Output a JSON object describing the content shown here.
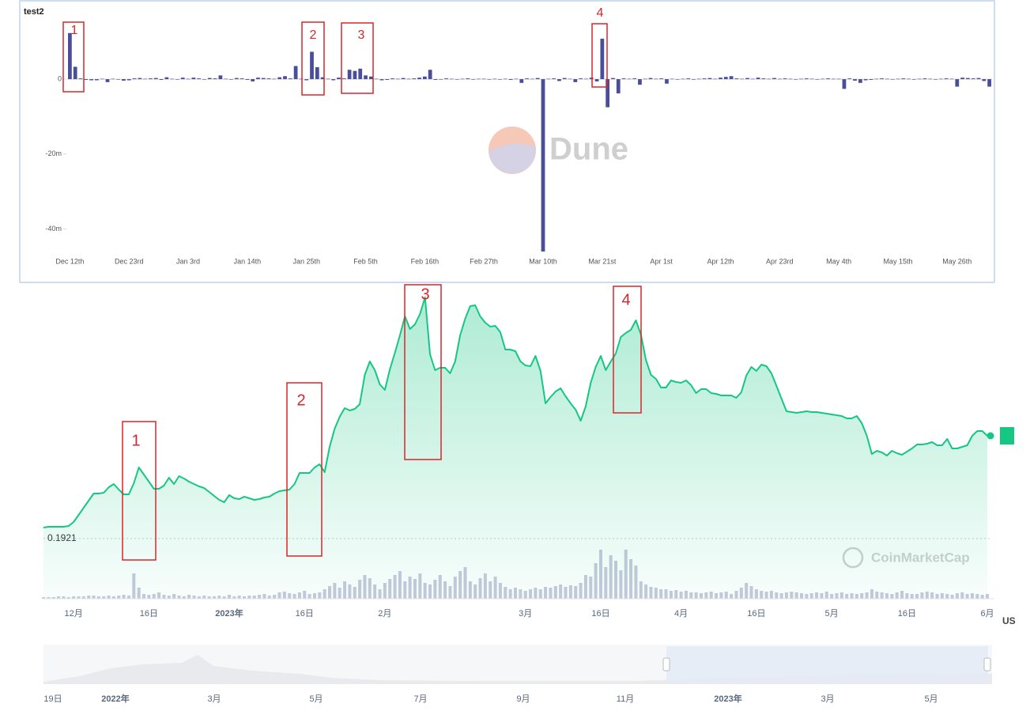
{
  "chart_data": [
    {
      "type": "bar",
      "title": "test2",
      "color": "#4a4e99",
      "watermark": "Dune",
      "ylim": [
        -46,
        15
      ],
      "yticks": [
        0,
        {
          "value": -20,
          "label": "-20m"
        },
        {
          "value": -40,
          "label": "-40m"
        }
      ],
      "annotations": [
        "1",
        "2",
        "3",
        "4"
      ],
      "categories": [
        "Dec 12th",
        null,
        null,
        null,
        null,
        null,
        null,
        null,
        null,
        null,
        null,
        "Dec 23rd",
        null,
        null,
        null,
        null,
        null,
        null,
        null,
        null,
        null,
        null,
        "Jan 3rd",
        null,
        null,
        null,
        null,
        null,
        null,
        null,
        null,
        null,
        null,
        "Jan 14th",
        null,
        null,
        null,
        null,
        null,
        null,
        null,
        null,
        null,
        null,
        "Jan 25th",
        null,
        null,
        null,
        null,
        null,
        null,
        null,
        null,
        null,
        null,
        "Feb 5th",
        null,
        null,
        null,
        null,
        null,
        null,
        null,
        null,
        null,
        null,
        "Feb 16th",
        null,
        null,
        null,
        null,
        null,
        null,
        null,
        null,
        null,
        null,
        "Feb 27th",
        null,
        null,
        null,
        null,
        null,
        null,
        null,
        null,
        null,
        null,
        "Mar 10th",
        null,
        null,
        null,
        null,
        null,
        null,
        null,
        null,
        null,
        null,
        "Mar 21st",
        null,
        null,
        null,
        null,
        null,
        null,
        null,
        null,
        null,
        null,
        "Apr 1st",
        null,
        null,
        null,
        null,
        null,
        null,
        null,
        null,
        null,
        null,
        "Apr 12th",
        null,
        null,
        null,
        null,
        null,
        null,
        null,
        null,
        null,
        null,
        "Apr 23rd",
        null,
        null,
        null,
        null,
        null,
        null,
        null,
        null,
        null,
        null,
        "May 4th",
        null,
        null,
        null,
        null,
        null,
        null,
        null,
        null,
        null,
        null,
        "May 15th",
        null,
        null,
        null,
        null,
        null,
        null,
        null,
        null,
        null,
        null,
        "May 26th",
        null,
        null,
        null,
        null,
        null,
        null
      ],
      "values": [
        12.3,
        3.3,
        0.2,
        -0.2,
        -0.3,
        -0.3,
        0.1,
        -0.8,
        0.1,
        0,
        -0.4,
        -0.3,
        0.2,
        0.3,
        0.1,
        0.2,
        0.3,
        -0.2,
        0.5,
        0.1,
        0,
        0.4,
        0.1,
        0.4,
        0.2,
        -0.1,
        0.3,
        0.2,
        1.0,
        0.1,
        0,
        0.3,
        0.2,
        -0.2,
        -0.6,
        0.4,
        0.3,
        0.2,
        0.1,
        0.5,
        0.8,
        0.2,
        3.5,
        0.1,
        -0.3,
        7.3,
        3.2,
        0.5,
        0.1,
        -0.3,
        0.4,
        0.2,
        2.5,
        2.2,
        2.8,
        1.0,
        0.7,
        0.1,
        -0.3,
        -0.2,
        0.2,
        0.1,
        0.3,
        0.1,
        0.2,
        0.4,
        0.7,
        2.5,
        -0.2,
        -0.1,
        0.2,
        0.1,
        -0.1,
        0.1,
        0.2,
        0,
        0.1,
        0.1,
        -0.1,
        0.1,
        0,
        0.1,
        -0.2,
        0.1,
        -1.0,
        0.2,
        0.1,
        0.3,
        -46,
        0.1,
        0.2,
        -0.5,
        0.3,
        0.1,
        -0.8,
        0.2,
        0.1,
        0.4,
        -0.6,
        10.8,
        -7.5,
        0.3,
        -3.8,
        0.2,
        0.1,
        0.2,
        -1.5,
        0.1,
        0.3,
        0.1,
        0.2,
        -1.2,
        0.1,
        0,
        0.1,
        0.2,
        -0.1,
        0.1,
        0.2,
        0.3,
        0.1,
        0.4,
        0.6,
        0.8,
        0.2,
        0.1,
        0.3,
        0.1,
        0.4,
        0.2,
        0.1,
        0.3,
        0.1,
        0.2,
        0.1,
        0,
        0.1,
        0.2,
        0.1,
        0,
        0.1,
        0.2,
        0.1,
        0.1,
        -2.6,
        0.2,
        -0.4,
        -1.0,
        -0.3,
        -0.2,
        0.1,
        0.2,
        0.1,
        0,
        0.1,
        0.2,
        0.1,
        0,
        0.1,
        0.2,
        0.1,
        0,
        0.1,
        0.2,
        0.1,
        -2.0,
        0.4,
        0.3,
        0.2,
        0.3,
        -0.5,
        -2.0
      ]
    },
    {
      "type": "line",
      "watermark": "CoinMarketCap",
      "unit_label": "US",
      "ylim": [
        0.113,
        0.513
      ],
      "min_price": 0.1921,
      "annotations": [
        "1",
        "2",
        "3",
        "4"
      ],
      "categories": [
        null,
        null,
        null,
        null,
        null,
        null,
        "12月",
        null,
        null,
        null,
        null,
        null,
        null,
        null,
        null,
        null,
        null,
        null,
        null,
        null,
        null,
        "16日",
        null,
        null,
        null,
        null,
        null,
        null,
        null,
        null,
        null,
        null,
        null,
        null,
        null,
        null,
        null,
        "2023年",
        null,
        null,
        null,
        null,
        null,
        null,
        null,
        null,
        null,
        null,
        null,
        null,
        null,
        null,
        "16日",
        null,
        null,
        null,
        null,
        null,
        null,
        null,
        null,
        null,
        null,
        null,
        null,
        null,
        null,
        null,
        "2月",
        null,
        null,
        null,
        null,
        null,
        null,
        null,
        null,
        null,
        null,
        null,
        null,
        null,
        null,
        null,
        null,
        null,
        null,
        null,
        null,
        null,
        null,
        null,
        null,
        null,
        null,
        null,
        "3月",
        null,
        null,
        null,
        null,
        null,
        null,
        null,
        null,
        null,
        null,
        null,
        null,
        null,
        null,
        "16日",
        null,
        null,
        null,
        null,
        null,
        null,
        null,
        null,
        null,
        null,
        null,
        null,
        null,
        null,
        null,
        "4月",
        null,
        null,
        null,
        null,
        null,
        null,
        null,
        null,
        null,
        null,
        null,
        null,
        null,
        null,
        "16日",
        null,
        null,
        null,
        null,
        null,
        null,
        null,
        null,
        null,
        null,
        null,
        null,
        null,
        null,
        "5月",
        null,
        null,
        null,
        null,
        null,
        null,
        null,
        null,
        null,
        null,
        null,
        null,
        null,
        null,
        "16日",
        null,
        null,
        null,
        null,
        null,
        null,
        null,
        null,
        null,
        null,
        null,
        null,
        null,
        null,
        null,
        "6月"
      ],
      "series": [
        {
          "color": "#16c784",
          "values": [
            0.206,
            0.207,
            0.207,
            0.207,
            0.207,
            0.208,
            0.213,
            0.222,
            0.231,
            0.24,
            0.249,
            0.249,
            0.25,
            0.257,
            0.261,
            0.254,
            0.248,
            0.248,
            0.262,
            0.282,
            0.273,
            0.264,
            0.255,
            0.255,
            0.259,
            0.269,
            0.261,
            0.271,
            0.268,
            0.264,
            0.261,
            0.258,
            0.256,
            0.251,
            0.246,
            0.241,
            0.238,
            0.247,
            0.243,
            0.242,
            0.245,
            0.243,
            0.241,
            0.242,
            0.244,
            0.245,
            0.249,
            0.252,
            0.253,
            0.254,
            0.261,
            0.275,
            0.275,
            0.275,
            0.282,
            0.286,
            0.276,
            0.308,
            0.331,
            0.346,
            0.357,
            0.354,
            0.356,
            0.362,
            0.399,
            0.416,
            0.405,
            0.387,
            0.38,
            0.406,
            0.427,
            0.449,
            0.473,
            0.457,
            0.463,
            0.476,
            0.497,
            0.425,
            0.405,
            0.408,
            0.408,
            0.401,
            0.416,
            0.449,
            0.47,
            0.486,
            0.487,
            0.473,
            0.465,
            0.46,
            0.461,
            0.453,
            0.431,
            0.431,
            0.429,
            0.416,
            0.411,
            0.41,
            0.423,
            0.404,
            0.363,
            0.371,
            0.378,
            0.382,
            0.372,
            0.363,
            0.355,
            0.341,
            0.359,
            0.389,
            0.409,
            0.423,
            0.405,
            0.416,
            0.426,
            0.447,
            0.452,
            0.456,
            0.468,
            0.45,
            0.418,
            0.399,
            0.394,
            0.383,
            0.383,
            0.392,
            0.39,
            0.389,
            0.392,
            0.386,
            0.376,
            0.381,
            0.381,
            0.376,
            0.375,
            0.373,
            0.373,
            0.373,
            0.37,
            0.377,
            0.398,
            0.409,
            0.404,
            0.412,
            0.41,
            0.401,
            0.385,
            0.369,
            0.353,
            0.352,
            0.351,
            0.352,
            0.353,
            0.352,
            0.352,
            0.351,
            0.35,
            0.349,
            0.348,
            0.347,
            0.344,
            0.344,
            0.347,
            0.338,
            0.322,
            0.299,
            0.303,
            0.301,
            0.297,
            0.303,
            0.3,
            0.298,
            0.302,
            0.306,
            0.311,
            0.311,
            0.312,
            0.314,
            0.31,
            0.31,
            0.318,
            0.306,
            0.306,
            0.308,
            0.31,
            0.322,
            0.328,
            0.328,
            0.322
          ]
        }
      ],
      "volume": {
        "color": "#c6c9dc",
        "ylim": [
          0,
          100
        ],
        "values": [
          2,
          2,
          2,
          3,
          3,
          2,
          3,
          3,
          3,
          4,
          4,
          3,
          3,
          4,
          3,
          4,
          5,
          4,
          32,
          14,
          6,
          5,
          6,
          8,
          5,
          4,
          6,
          4,
          3,
          5,
          4,
          3,
          4,
          3,
          3,
          4,
          3,
          5,
          3,
          4,
          3,
          4,
          4,
          5,
          6,
          4,
          5,
          8,
          9,
          7,
          6,
          8,
          10,
          6,
          7,
          8,
          12,
          16,
          20,
          14,
          22,
          18,
          15,
          24,
          30,
          26,
          18,
          12,
          20,
          25,
          30,
          35,
          22,
          28,
          25,
          32,
          20,
          18,
          24,
          30,
          22,
          16,
          28,
          35,
          40,
          22,
          18,
          26,
          32,
          22,
          28,
          20,
          15,
          12,
          14,
          12,
          10,
          12,
          14,
          12,
          15,
          14,
          16,
          18,
          15,
          17,
          16,
          20,
          30,
          28,
          45,
          62,
          40,
          55,
          48,
          36,
          62,
          50,
          42,
          22,
          18,
          15,
          14,
          12,
          12,
          10,
          11,
          9,
          10,
          8,
          8,
          7,
          8,
          9,
          7,
          8,
          9,
          6,
          10,
          14,
          20,
          16,
          12,
          10,
          9,
          10,
          8,
          7,
          8,
          9,
          8,
          7,
          6,
          7,
          8,
          7,
          9,
          6,
          7,
          8,
          6,
          7,
          6,
          7,
          8,
          12,
          9,
          8,
          7,
          6,
          8,
          10,
          7,
          6,
          6,
          8,
          9,
          8,
          6,
          7,
          6,
          5,
          7,
          8,
          6,
          7,
          6,
          5,
          6
        ]
      },
      "navigator": {
        "categories": [
          "19日",
          "2022年",
          "3月",
          "5月",
          "7月",
          "9月",
          "11月",
          "2023年",
          "3月",
          "5月"
        ]
      }
    }
  ]
}
